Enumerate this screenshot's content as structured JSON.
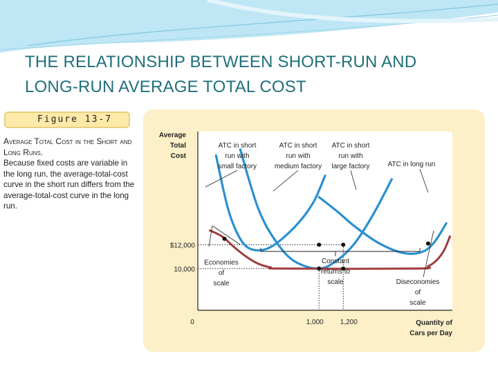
{
  "slide": {
    "title_line1": "THE RELATIONSHIP BETWEEN SHORT-RUN AND",
    "title_line2": "LONG-RUN AVERAGE TOTAL COST"
  },
  "figure": {
    "label": "Figure 13-7",
    "caption_title": "Average Total Cost in the Short and Long Runs.",
    "caption_body": "Because fixed costs are variable in the long run, the average-total-cost curve in the short run differs from the average-total-cost curve in the long run."
  },
  "colors": {
    "short_run": "#2a8fd0",
    "long_run": "#a03a3e",
    "panel": "#fdf0c8",
    "title": "#1f6f7a"
  },
  "chart_data": {
    "type": "line",
    "ylabel": [
      "Average",
      "Total",
      "Cost"
    ],
    "xlabel": [
      "Quantity of",
      "Cars per Day"
    ],
    "origin_label": "0",
    "y_ticks": [
      {
        "value": 12000,
        "label": "$12,000"
      },
      {
        "value": 10000,
        "label": "10,000"
      }
    ],
    "x_ticks": [
      {
        "value": 1000,
        "label": "1,000"
      },
      {
        "value": 1200,
        "label": "1,200"
      }
    ],
    "xlim": [
      0,
      2100
    ],
    "ylim": [
      6500,
      21500
    ],
    "series": [
      {
        "name": "ATC in short run with small factory",
        "points": [
          [
            150,
            19500
          ],
          [
            250,
            15000
          ],
          [
            350,
            12500
          ],
          [
            450,
            11600
          ],
          [
            600,
            11800
          ],
          [
            800,
            13500
          ],
          [
            950,
            15500
          ],
          [
            1050,
            17800
          ]
        ]
      },
      {
        "name": "ATC in short run with medium factory",
        "points": [
          [
            350,
            20000
          ],
          [
            500,
            15000
          ],
          [
            650,
            12200
          ],
          [
            800,
            10600
          ],
          [
            1000,
            10000
          ],
          [
            1150,
            10700
          ],
          [
            1300,
            12200
          ],
          [
            1450,
            14600
          ],
          [
            1600,
            17500
          ]
        ]
      },
      {
        "name": "ATC in short run with large factory",
        "points": [
          [
            1000,
            16000
          ],
          [
            1150,
            14800
          ],
          [
            1300,
            13500
          ],
          [
            1500,
            12100
          ],
          [
            1700,
            11300
          ],
          [
            1850,
            11400
          ],
          [
            1950,
            12200
          ],
          [
            2050,
            13800
          ]
        ]
      },
      {
        "name": "ATC in long run",
        "points": [
          [
            100,
            13200
          ],
          [
            200,
            12700
          ],
          [
            300,
            11800
          ],
          [
            400,
            11000
          ],
          [
            500,
            10400
          ],
          [
            600,
            10100
          ],
          [
            700,
            10000
          ],
          [
            1800,
            10000
          ],
          [
            1900,
            10200
          ],
          [
            1970,
            10700
          ],
          [
            2030,
            11500
          ],
          [
            2080,
            12700
          ]
        ]
      }
    ],
    "curve_labels": [
      {
        "lines": [
          "ATC in short",
          "run with",
          "small factory"
        ],
        "series": "ATC in short run with small factory"
      },
      {
        "lines": [
          "ATC in short",
          "run with",
          "medium factory"
        ],
        "series": "ATC in short run with medium factory"
      },
      {
        "lines": [
          "ATC in short",
          "run with",
          "large factory"
        ],
        "series": "ATC in short run with large factory"
      },
      {
        "lines": [
          "ATC in long run"
        ],
        "series": "ATC in long run"
      }
    ],
    "points_marked": [
      [
        220,
        12500
      ],
      [
        1000,
        12000
      ],
      [
        1000,
        10000
      ],
      [
        1200,
        10000
      ],
      [
        1200,
        12000
      ],
      [
        1900,
        12100
      ]
    ],
    "annotations": [
      {
        "lines": [
          "Economies",
          "of",
          "scale"
        ]
      },
      {
        "lines": [
          "Constant",
          "returns to",
          "scale"
        ]
      },
      {
        "lines": [
          "Diseconomies",
          "of",
          "scale"
        ]
      }
    ],
    "grid": false
  }
}
